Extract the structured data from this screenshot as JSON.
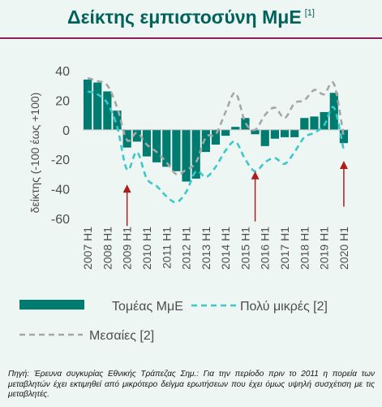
{
  "title": "Δείκτης εμπιστοσύνη ΜμΕ",
  "title_note": "[1]",
  "source_text": "Πηγή: Έρευνα συγκυρίας Εθνικής Τράπεζας Σημ.: Για την περίοδο πριν το 2011 η πορεία των μεταβλητών έχει εκτιμηθεί από μικρότερο δείγμα ερωτήσεων που έχει όμως υψηλή συσχέτιση με τις μεταβλητές.",
  "colors": {
    "bars": "#007b70",
    "line_small": "#3cc8c8",
    "line_medium": "#a6a6a6",
    "arrows": "#b01b1b",
    "text": "#4d4d4d",
    "title": "#00625a",
    "rule": "#8a1f5c"
  },
  "chart_data": {
    "type": "bar",
    "ylabel": "δείκτης (-100 έως +100)",
    "ylim": [
      -60,
      40
    ],
    "yticks": [
      40,
      20,
      0,
      -20,
      -40,
      -60
    ],
    "tick_labels": [
      "2007 H1",
      "2008 H1",
      "2009 H1",
      "2010 H1",
      "2011 H1",
      "2012 H1",
      "2013 H1",
      "2014 H1",
      "2015 H1",
      "2016 H1",
      "2017 H1",
      "2018 H1",
      "2019 H1",
      "2020 H1"
    ],
    "periods": [
      "2007 H1",
      "2007 H2",
      "2008 H1",
      "2008 H2",
      "2009 H1",
      "2009 H2",
      "2010 H1",
      "2010 H2",
      "2011 H1",
      "2011 H2",
      "2012 H1",
      "2012 H2",
      "2013 H1",
      "2013 H2",
      "2014 H1",
      "2014 H2",
      "2015 H1",
      "2015 H2",
      "2016 H1",
      "2016 H2",
      "2017 H1",
      "2017 H2",
      "2018 H1",
      "2018 H2",
      "2019 H1",
      "2019 H2",
      "2020 H1"
    ],
    "series": [
      {
        "name": "Τομέας ΜμΕ",
        "style": "bar",
        "values": [
          34,
          32,
          26,
          13,
          -12,
          -8,
          -18,
          -22,
          -25,
          -28,
          -35,
          -33,
          -15,
          -10,
          -4,
          2,
          8,
          -3,
          -11,
          -6,
          -5,
          -5,
          8,
          9,
          12,
          25,
          -9
        ]
      },
      {
        "name": "Πολύ μικρές [2]",
        "style": "dashed",
        "values": [
          26,
          24,
          18,
          2,
          -27,
          -15,
          -33,
          -38,
          -45,
          -49,
          -42,
          -28,
          -32,
          -25,
          -14,
          -8,
          -20,
          -28,
          -22,
          -19,
          -23,
          -15,
          -5,
          -2,
          3,
          15,
          -14
        ]
      },
      {
        "name": "Μεσαίες [2]",
        "style": "dashed",
        "values": [
          35,
          33,
          30,
          15,
          -7,
          -2,
          -10,
          -15,
          -22,
          -30,
          -27,
          -22,
          -5,
          -3,
          12,
          25,
          5,
          0,
          10,
          15,
          8,
          18,
          20,
          27,
          24,
          31,
          -5
        ]
      }
    ],
    "annotations": [
      {
        "type": "arrow",
        "direction": "up",
        "x": "2009 H1",
        "from": -65,
        "to": -37
      },
      {
        "type": "arrow",
        "direction": "up",
        "x": "2015 H2",
        "from": -62,
        "to": -28
      },
      {
        "type": "arrow",
        "direction": "up",
        "x": "2020 H1",
        "from": -52,
        "to": -21
      }
    ],
    "legend": "bottom",
    "grid": false
  }
}
